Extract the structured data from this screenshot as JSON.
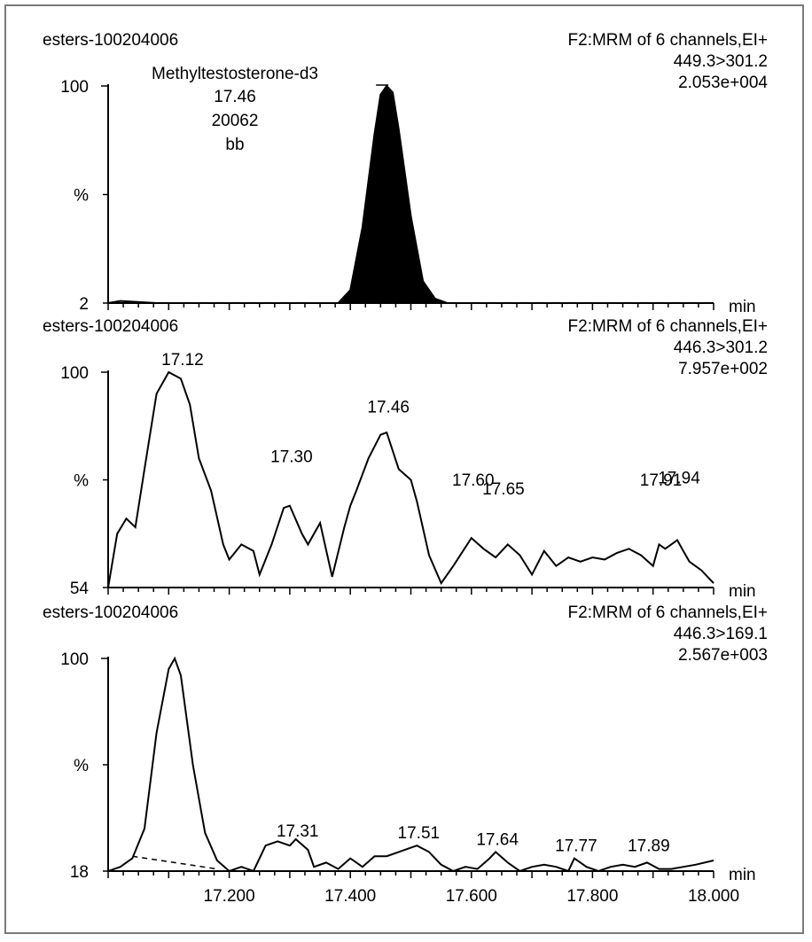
{
  "chart_data": [
    {
      "type": "line",
      "sample": "esters-100204006",
      "function": "F2:MRM of 6 channels,EI+",
      "transition": "449.3>301.2",
      "intensity": "2.053e+004",
      "y_max_label": "100",
      "y_mid_label": "%",
      "y_min_label": "2",
      "x_unit": "min",
      "xlim": [
        17.0,
        18.0
      ],
      "filled": true,
      "peak_labels": [
        {
          "name": "Methyltestosterone-d3",
          "rt": "17.46",
          "area": "20062",
          "flag": "bb",
          "x": 17.46
        }
      ],
      "series": [
        {
          "x": [
            17.0,
            17.02,
            17.08,
            17.38,
            17.4,
            17.42,
            17.44,
            17.45,
            17.46,
            17.47,
            17.48,
            17.5,
            17.52,
            17.54,
            17.56,
            18.0
          ],
          "y": [
            0,
            1,
            0,
            0,
            6,
            35,
            78,
            96,
            100,
            97,
            80,
            40,
            10,
            2,
            0,
            0
          ]
        }
      ]
    },
    {
      "type": "line",
      "sample": "esters-100204006",
      "function": "F2:MRM of 6 channels,EI+",
      "transition": "446.3>301.2",
      "intensity": "7.957e+002",
      "y_max_label": "100",
      "y_mid_label": "%",
      "y_min_label": "54",
      "x_unit": "min",
      "xlim": [
        17.0,
        18.0
      ],
      "filled": false,
      "peak_labels": [
        {
          "text": "17.12",
          "x": 17.12,
          "y": 100
        },
        {
          "text": "17.30",
          "x": 17.3,
          "y": 55
        },
        {
          "text": "17.46",
          "x": 17.46,
          "y": 78
        },
        {
          "text": "17.60",
          "x": 17.6,
          "y": 44
        },
        {
          "text": "17.65",
          "x": 17.65,
          "y": 40
        },
        {
          "text": "17.91",
          "x": 17.91,
          "y": 44
        },
        {
          "text": "17.94",
          "x": 17.94,
          "y": 45
        }
      ],
      "series": [
        {
          "x": [
            17.0,
            17.015,
            17.03,
            17.045,
            17.06,
            17.08,
            17.1,
            17.12,
            17.135,
            17.15,
            17.17,
            17.19,
            17.2,
            17.22,
            17.24,
            17.25,
            17.27,
            17.29,
            17.3,
            17.32,
            17.33,
            17.35,
            17.37,
            17.39,
            17.4,
            17.41,
            17.43,
            17.45,
            17.46,
            17.48,
            17.5,
            17.51,
            17.53,
            17.55,
            17.57,
            17.6,
            17.62,
            17.64,
            17.66,
            17.68,
            17.7,
            17.72,
            17.74,
            17.76,
            17.78,
            17.8,
            17.82,
            17.84,
            17.86,
            17.88,
            17.9,
            17.91,
            17.92,
            17.94,
            17.95,
            17.96,
            17.98,
            18.0
          ],
          "y": [
            0,
            25,
            32,
            28,
            55,
            90,
            100,
            97,
            85,
            60,
            45,
            20,
            13,
            20,
            17,
            6,
            20,
            37,
            38,
            25,
            20,
            30,
            5,
            28,
            38,
            45,
            60,
            71,
            72,
            55,
            50,
            40,
            15,
            2,
            10,
            23,
            18,
            14,
            20,
            15,
            6,
            17,
            10,
            14,
            12,
            14,
            13,
            16,
            18,
            15,
            10,
            20,
            18,
            22,
            17,
            12,
            8,
            2
          ]
        }
      ]
    },
    {
      "type": "line",
      "sample": "esters-100204006",
      "function": "F2:MRM of 6 channels,EI+",
      "transition": "446.3>169.1",
      "intensity": "2.567e+003",
      "y_max_label": "100",
      "y_mid_label": "%",
      "y_min_label": "18",
      "x_unit": "min",
      "xlim": [
        17.0,
        18.0
      ],
      "x_ticks": [
        "17.200",
        "17.400",
        "17.600",
        "17.800",
        "18.000"
      ],
      "filled": false,
      "peak_labels": [
        {
          "text": "17.31",
          "x": 17.31,
          "y": 13
        },
        {
          "text": "17.51",
          "x": 17.51,
          "y": 12
        },
        {
          "text": "17.64",
          "x": 17.64,
          "y": 9
        },
        {
          "text": "17.77",
          "x": 17.77,
          "y": 6
        },
        {
          "text": "17.89",
          "x": 17.89,
          "y": 6
        }
      ],
      "baseline": {
        "x": [
          17.04,
          17.18
        ],
        "y": [
          7,
          1
        ]
      },
      "series": [
        {
          "x": [
            17.0,
            17.02,
            17.04,
            17.06,
            17.08,
            17.1,
            17.11,
            17.12,
            17.14,
            17.16,
            17.18,
            17.2,
            17.22,
            17.24,
            17.26,
            17.28,
            17.3,
            17.31,
            17.33,
            17.34,
            17.36,
            17.38,
            17.4,
            17.42,
            17.44,
            17.46,
            17.48,
            17.5,
            17.51,
            17.53,
            17.55,
            17.57,
            17.59,
            17.61,
            17.63,
            17.64,
            17.66,
            17.68,
            17.7,
            17.72,
            17.74,
            17.76,
            17.77,
            17.79,
            17.81,
            17.83,
            17.85,
            17.87,
            17.89,
            17.91,
            17.93,
            17.95,
            17.97,
            18.0
          ],
          "y": [
            0,
            2,
            6,
            20,
            65,
            95,
            100,
            92,
            50,
            18,
            5,
            0,
            2,
            0,
            12,
            14,
            12,
            15,
            10,
            2,
            4,
            1,
            6,
            2,
            7,
            7,
            9,
            11,
            12,
            9,
            3,
            0,
            2,
            1,
            6,
            9,
            4,
            0,
            2,
            3,
            2,
            0,
            6,
            2,
            0,
            2,
            3,
            2,
            4,
            1,
            1,
            2,
            3,
            5
          ]
        }
      ]
    }
  ]
}
